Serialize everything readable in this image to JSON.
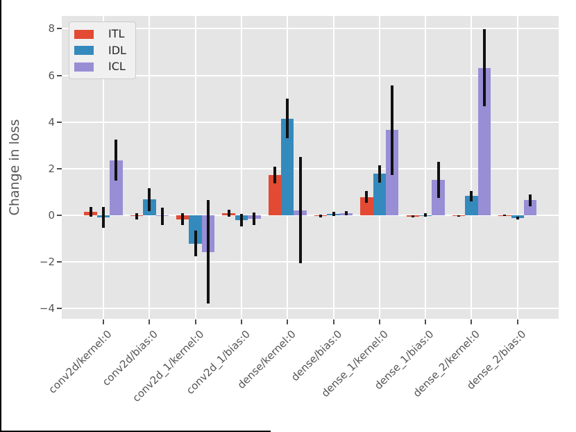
{
  "chart_data": {
    "type": "bar",
    "title": "",
    "xlabel": "",
    "ylabel": "Change in loss",
    "categories": [
      "conv2d/kernel:0",
      "conv2d/bias:0",
      "conv2d_1/kernel:0",
      "conv2d_1/bias:0",
      "dense/kernel:0",
      "dense/bias:0",
      "dense_1/kernel:0",
      "dense_1/bias:0",
      "dense_2/kernel:0",
      "dense_2/bias:0"
    ],
    "series": [
      {
        "name": "ITL",
        "color": "#E24A33",
        "values": [
          0.15,
          -0.04,
          -0.17,
          0.1,
          1.72,
          -0.03,
          0.78,
          -0.05,
          -0.02,
          0.0
        ],
        "errors": [
          0.21,
          0.14,
          0.25,
          0.15,
          0.36,
          0.05,
          0.25,
          0.05,
          0.03,
          0.02
        ]
      },
      {
        "name": "IDL",
        "color": "#348ABD",
        "values": [
          -0.1,
          0.68,
          -1.22,
          -0.2,
          4.15,
          0.06,
          1.78,
          0.01,
          0.82,
          -0.12
        ],
        "errors": [
          0.45,
          0.49,
          0.55,
          0.27,
          0.85,
          0.09,
          0.37,
          0.08,
          0.22,
          0.06
        ]
      },
      {
        "name": "ICL",
        "color": "#988ED5",
        "values": [
          2.36,
          -0.04,
          -1.57,
          -0.15,
          0.22,
          0.1,
          3.66,
          1.51,
          6.32,
          0.65
        ],
        "errors": [
          0.88,
          0.38,
          2.22,
          0.28,
          2.27,
          0.09,
          1.92,
          0.78,
          1.65,
          0.25
        ]
      }
    ],
    "yticks": [
      8,
      6,
      4,
      2,
      0,
      -2,
      -4
    ],
    "ylim": [
      -4.44,
      8.55
    ],
    "grid": true,
    "legend_position": "upper left",
    "style": {
      "plot_bg": "#E5E5E5",
      "grid_color": "#FFFFFF",
      "tick_text_color": "#555555",
      "tick_mark_color": "#4D4D4D",
      "errorbar_color": "#111111",
      "legend_bg": "#F0F0F0",
      "legend_border": "#CCCCCC",
      "legend_text_color": "#262626"
    }
  }
}
